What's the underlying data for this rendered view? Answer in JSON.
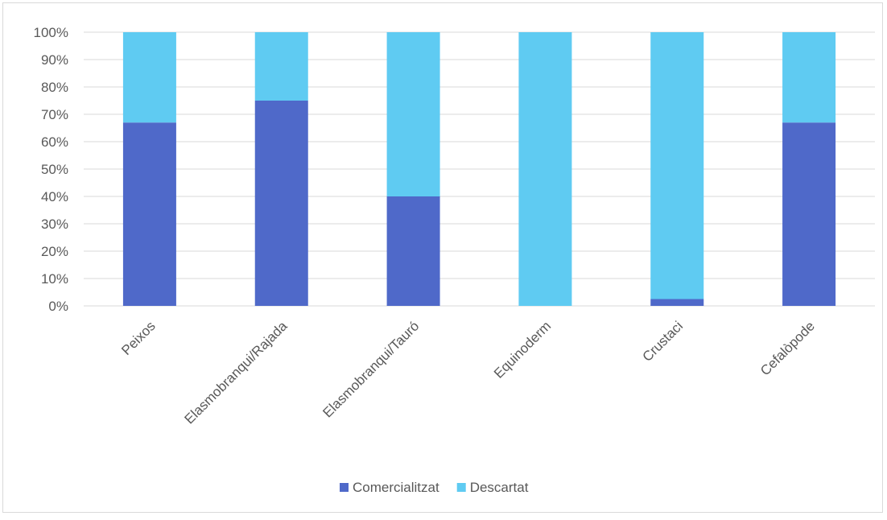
{
  "chart_data": {
    "type": "bar",
    "stacked": true,
    "percent": true,
    "categories": [
      "Peixos",
      "Elasmobranqui/Rajada",
      "Elasmobranqui/Tauró",
      "Equinoderm",
      "Crustaci",
      "Cefalòpode"
    ],
    "series": [
      {
        "name": "Comercialitzat",
        "color": "#4f69c9",
        "values": [
          67,
          75,
          40,
          0,
          2.5,
          67
        ]
      },
      {
        "name": "Descartat",
        "color": "#5fcbf2",
        "values": [
          33,
          25,
          60,
          100,
          97.5,
          33
        ]
      }
    ],
    "y_ticks": [
      "0%",
      "10%",
      "20%",
      "30%",
      "40%",
      "50%",
      "60%",
      "70%",
      "80%",
      "90%",
      "100%"
    ],
    "ylim": [
      0,
      100
    ],
    "grid": true,
    "legend_position": "bottom"
  }
}
